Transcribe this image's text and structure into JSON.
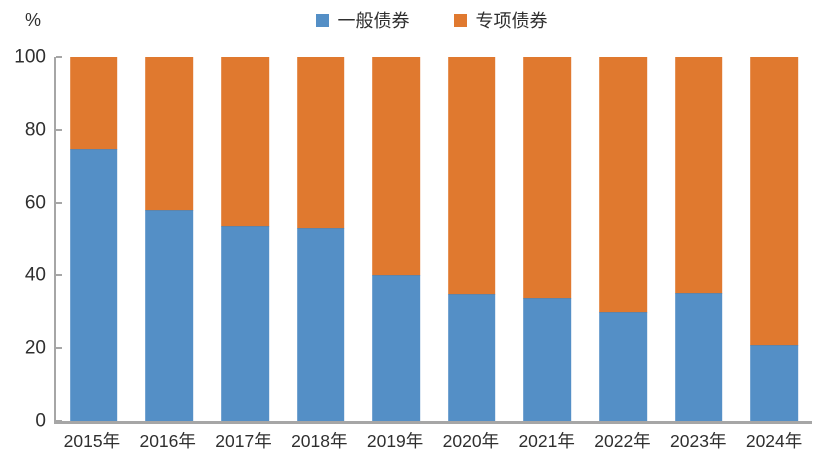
{
  "chart_data": {
    "type": "bar",
    "stacked": true,
    "percent_stacked": true,
    "title": "",
    "categories": [
      "2015年",
      "2016年",
      "2017年",
      "2018年",
      "2019年",
      "2020年",
      "2021年",
      "2022年",
      "2023年",
      "2024年"
    ],
    "series": [
      {
        "name": "一般债券",
        "color": "#548FC6",
        "values": [
          74.7,
          58.1,
          53.7,
          53.1,
          40.0,
          34.9,
          33.8,
          30.0,
          35.3,
          20.8
        ]
      },
      {
        "name": "专项债券",
        "color": "#E0792F",
        "values": [
          25.3,
          41.9,
          46.3,
          46.9,
          60.0,
          65.1,
          66.2,
          70.0,
          64.7,
          79.2
        ]
      }
    ],
    "xlabel": "",
    "ylabel": "%",
    "ylim": [
      0,
      100
    ],
    "yticks": [
      0,
      20,
      40,
      60,
      80,
      100
    ],
    "legend_position": "top-center",
    "grid": false,
    "axis_color": "#a6a6a6",
    "text_color": "#2f2f2f"
  }
}
